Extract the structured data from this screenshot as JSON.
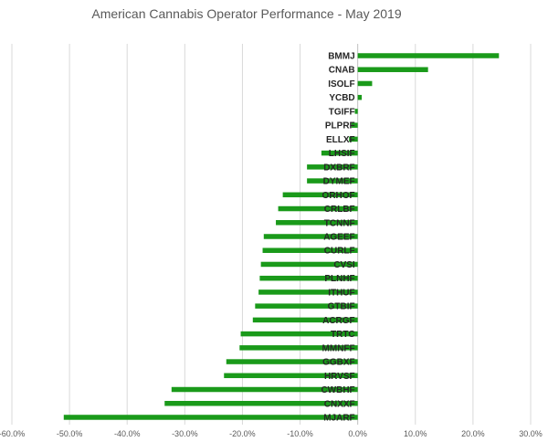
{
  "chart_data": {
    "type": "bar",
    "orientation": "horizontal",
    "title": "American Cannabis Operator Performance - May 2019",
    "xlabel": "",
    "ylabel": "",
    "xlim": [
      -0.6,
      0.3
    ],
    "x_ticks": [
      "-60.0%",
      "-50.0%",
      "-40.0%",
      "-30.0%",
      "-20.0%",
      "-10.0%",
      "0.0%",
      "10.0%",
      "20.0%",
      "30.0%"
    ],
    "grid": true,
    "legend": "none",
    "bar_color": "#1a9a1a",
    "categories": [
      "BMMJ",
      "CNAB",
      "ISOLF",
      "YCBD",
      "TGIFF",
      "PLPRF",
      "ELLXF",
      "LHSIF",
      "DXBRF",
      "DYMEF",
      "ORHOF",
      "CRLBF",
      "TCNNF",
      "AGEEF",
      "CURLF",
      "CVSI",
      "PLNHF",
      "ITHUF",
      "GTBIF",
      "ACRGF",
      "TRTC",
      "MMNFF",
      "GGBXF",
      "HRVSF",
      "CWBHF",
      "CNXXF",
      "MJARF"
    ],
    "values": [
      0.245,
      0.122,
      0.025,
      0.007,
      -0.005,
      -0.011,
      -0.015,
      -0.063,
      -0.088,
      -0.088,
      -0.13,
      -0.138,
      -0.142,
      -0.163,
      -0.165,
      -0.168,
      -0.17,
      -0.172,
      -0.178,
      -0.182,
      -0.203,
      -0.205,
      -0.228,
      -0.232,
      -0.323,
      -0.335,
      -0.51
    ]
  }
}
